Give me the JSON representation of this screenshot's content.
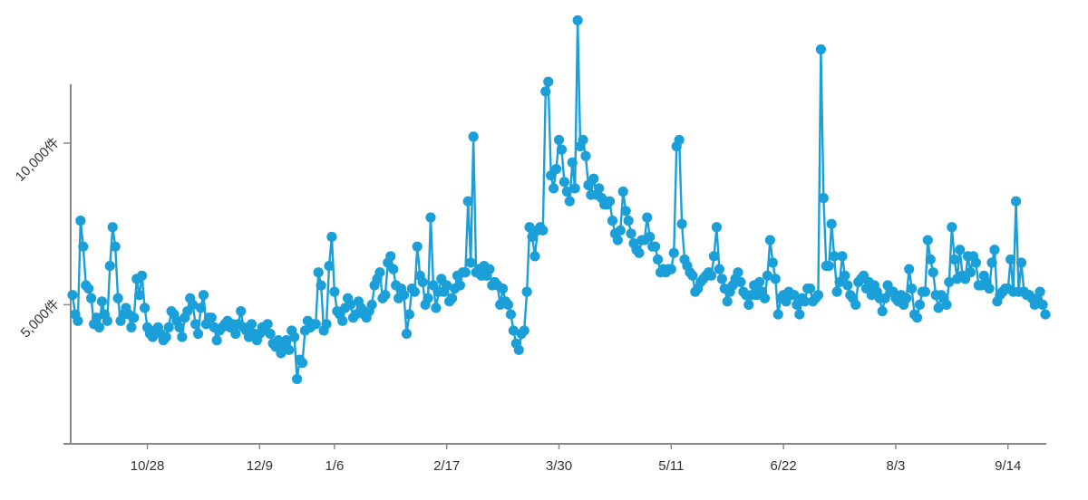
{
  "chart_data": {
    "type": "line",
    "title": "",
    "xlabel": "",
    "ylabel": "",
    "x_tick_labels": [
      "10/28",
      "12/9",
      "1/6",
      "2/17",
      "3/30",
      "5/11",
      "6/22",
      "8/3",
      "9/14"
    ],
    "y_tick_labels": [
      "5,000件",
      "10,000件"
    ],
    "y_ticks": [
      5000,
      10000
    ],
    "ylim": [
      0,
      13200
    ],
    "grid": false,
    "legend": "none",
    "colors": {
      "series": "#1a9fd9",
      "axis": "#888888",
      "text": "#333333"
    },
    "x_ticks_index": [
      28,
      70,
      98,
      140,
      182,
      224,
      266,
      308,
      350
    ],
    "series": [
      {
        "values": [
          5300,
          4700,
          4500,
          7600,
          6800,
          5600,
          5500,
          5200,
          4400,
          4600,
          4300,
          5100,
          4700,
          4500,
          6200,
          7400,
          6800,
          5200,
          4500,
          4700,
          4900,
          4700,
          4300,
          4600,
          5800,
          5300,
          5900,
          4900,
          4300,
          4100,
          4000,
          4200,
          4300,
          4100,
          3900,
          4000,
          4300,
          4800,
          4700,
          4500,
          4300,
          4000,
          4600,
          4800,
          5200,
          5000,
          4400,
          4100,
          4900,
          5300,
          4400,
          4600,
          4600,
          4300,
          3900,
          4200,
          4300,
          4400,
          4500,
          4300,
          4400,
          4100,
          4400,
          4800,
          4300,
          4200,
          4000,
          4400,
          4100,
          3900,
          4100,
          4300,
          4200,
          4400,
          4100,
          3800,
          3700,
          3900,
          3500,
          3700,
          3900,
          3600,
          4200,
          4000,
          2700,
          3300,
          3200,
          4200,
          4500,
          4300,
          4400,
          4400,
          6000,
          5600,
          4200,
          4400,
          6200,
          7100,
          5400,
          4800,
          4700,
          4500,
          4900,
          5200,
          5000,
          4600,
          4700,
          5100,
          4900,
          4700,
          4600,
          4800,
          5000,
          5600,
          5800,
          6000,
          5200,
          5300,
          6300,
          6500,
          6100,
          5600,
          5200,
          5500,
          5300,
          4100,
          4700,
          5500,
          5400,
          6800,
          5900,
          5700,
          5000,
          5200,
          7700,
          5600,
          4900,
          5400,
          5800,
          5400,
          5600,
          5100,
          5200,
          5500,
          5900,
          5600,
          6000,
          6000,
          8200,
          6300,
          10200,
          6000,
          6100,
          5900,
          6200,
          5900,
          6100,
          5600,
          5700,
          5600,
          5000,
          5500,
          5100,
          5000,
          4700,
          4200,
          3800,
          3600,
          4100,
          4200,
          5400,
          7400,
          7100,
          6500,
          7300,
          7400,
          7300,
          11600,
          11900,
          9000,
          8600,
          9200,
          10100,
          9800,
          8800,
          8500,
          8200,
          9400,
          8600,
          13800,
          9900,
          10100,
          9600,
          8700,
          8400,
          8900,
          8400,
          8600,
          8300,
          8100,
          8100,
          8200,
          7600,
          7200,
          7000,
          7300,
          8500,
          7900,
          7600,
          7200,
          6900,
          6700,
          6600,
          7000,
          7000,
          7700,
          7100,
          6800,
          6800,
          6400,
          6000,
          6100,
          6000,
          6100,
          6100,
          6600,
          9900,
          10100,
          7500,
          6400,
          6200,
          6000,
          5900,
          5400,
          5500,
          5700,
          5800,
          5900,
          6000,
          5900,
          6500,
          7400,
          6100,
          5800,
          5500,
          5100,
          5400,
          5600,
          5800,
          6000,
          5700,
          5400,
          5300,
          5000,
          5300,
          5600,
          5300,
          5700,
          5400,
          5200,
          5900,
          7000,
          6300,
          5800,
          4700,
          5200,
          5300,
          5100,
          5400,
          5300,
          5300,
          5000,
          4700,
          5200,
          5100,
          5500,
          5500,
          5100,
          5200,
          5300,
          12900,
          8300,
          6200,
          6200,
          7500,
          6500,
          5400,
          5700,
          6500,
          5900,
          5600,
          5300,
          5200,
          5000,
          5700,
          5800,
          5900,
          5500,
          5700,
          5300,
          5600,
          5400,
          5200,
          4800,
          5200,
          5600,
          5400,
          5400,
          5200,
          5100,
          5300,
          5000,
          5200,
          6100,
          5500,
          4700,
          4600,
          5000,
          5400,
          5400,
          7000,
          6400,
          6000,
          5300,
          4900,
          5300,
          5200,
          5000,
          5700,
          7400,
          6400,
          5800,
          6700,
          5900,
          5800,
          6500,
          6000,
          6500,
          6300,
          5600,
          5600,
          5900,
          5700,
          5500,
          6300,
          6700,
          5100,
          5300,
          5400,
          5500,
          5500,
          6400,
          5400,
          8200,
          5400,
          6300,
          5400,
          5300,
          5300,
          5200,
          5000,
          5200,
          5400,
          5000,
          4700
        ]
      }
    ]
  }
}
